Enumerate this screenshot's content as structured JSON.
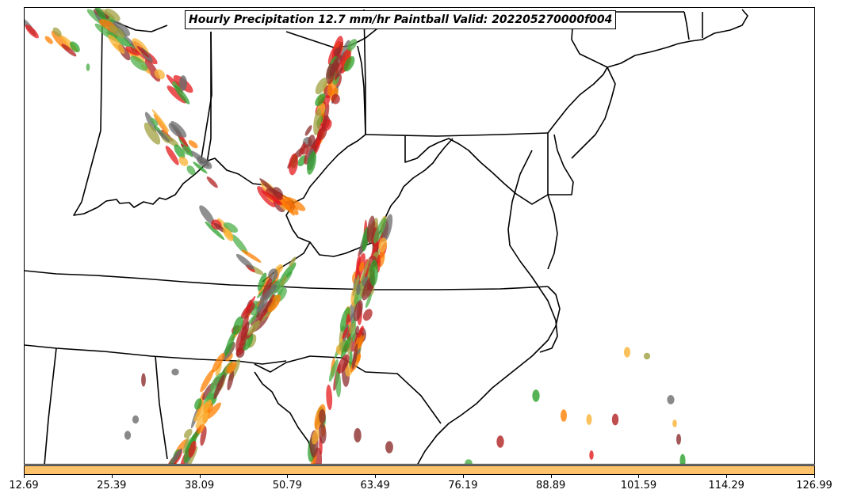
{
  "title": "Hourly Precipitation 12.7 mm/hr Paintball Valid: 202205270000f004",
  "colorbar": {
    "color": "#fdc26a",
    "ticks": [
      "12.69",
      "25.39",
      "38.09",
      "50.79",
      "63.49",
      "76.19",
      "88.89",
      "101.59",
      "114.29",
      "126.99"
    ]
  },
  "map": {
    "background": "#ffffff",
    "boundary_color": "#000000",
    "member_colors": [
      "#e41a1c",
      "#ff7f00",
      "#f9b233",
      "#4daf4a",
      "#2ca02c",
      "#a0a040",
      "#8c2d2d",
      "#6b6b6b",
      "#b22222"
    ]
  }
}
